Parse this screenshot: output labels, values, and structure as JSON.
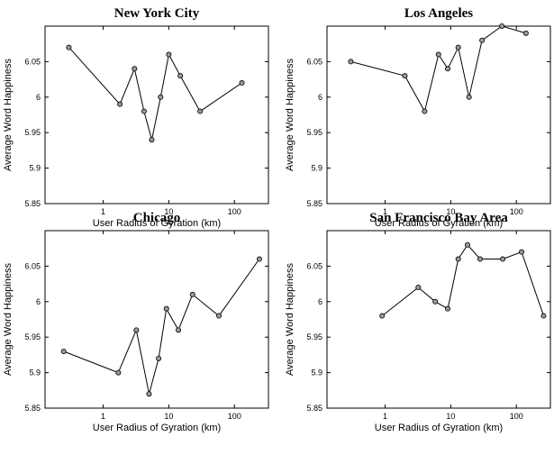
{
  "chart_data": [
    {
      "type": "line",
      "title": "New York City",
      "xlabel": "User Radius of Gyration (km)",
      "ylabel": "Average Word Happiness",
      "xscale": "log",
      "xlim": [
        0.13,
        330
      ],
      "ylim": [
        5.85,
        6.1
      ],
      "xticks": [
        {
          "v": 1,
          "label": "1"
        },
        {
          "v": 10,
          "label": "10"
        },
        {
          "v": 100,
          "label": "100"
        }
      ],
      "yticks": [
        {
          "v": 5.85,
          "label": "5.85"
        },
        {
          "v": 5.9,
          "label": "5.9"
        },
        {
          "v": 5.95,
          "label": "5.95"
        },
        {
          "v": 6,
          "label": "6"
        },
        {
          "v": 6.05,
          "label": "6.05"
        }
      ],
      "series": [
        {
          "x": [
            0.3,
            1.8,
            3.0,
            4.2,
            5.5,
            7.5,
            10,
            15,
            30,
            130
          ],
          "y": [
            6.07,
            5.99,
            6.04,
            5.98,
            5.94,
            6.0,
            6.06,
            6.03,
            5.98,
            6.02
          ]
        }
      ]
    },
    {
      "type": "line",
      "title": "Los Angeles",
      "xlabel": "User Radius of Gyration (km)",
      "ylabel": "Average Word Happiness",
      "xscale": "log",
      "xlim": [
        0.13,
        330
      ],
      "ylim": [
        5.85,
        6.1
      ],
      "xticks": [
        {
          "v": 1,
          "label": "1"
        },
        {
          "v": 10,
          "label": "10"
        },
        {
          "v": 100,
          "label": "100"
        }
      ],
      "yticks": [
        {
          "v": 5.85,
          "label": "5.85"
        },
        {
          "v": 5.9,
          "label": "5.9"
        },
        {
          "v": 5.95,
          "label": "5.95"
        },
        {
          "v": 6,
          "label": "6"
        },
        {
          "v": 6.05,
          "label": "6.05"
        }
      ],
      "series": [
        {
          "x": [
            0.3,
            2.0,
            4.0,
            6.5,
            9.0,
            13,
            19,
            30,
            60,
            140
          ],
          "y": [
            6.05,
            6.03,
            5.98,
            6.06,
            6.04,
            6.07,
            6.0,
            6.08,
            6.1,
            6.09
          ]
        }
      ]
    },
    {
      "type": "line",
      "title": "Chicago",
      "xlabel": "User Radius of Gyration (km)",
      "ylabel": "Average Word Happiness",
      "xscale": "log",
      "xlim": [
        0.13,
        330
      ],
      "ylim": [
        5.85,
        6.1
      ],
      "xticks": [
        {
          "v": 1,
          "label": "1"
        },
        {
          "v": 10,
          "label": "10"
        },
        {
          "v": 100,
          "label": "100"
        }
      ],
      "yticks": [
        {
          "v": 5.85,
          "label": "5.85"
        },
        {
          "v": 5.9,
          "label": "5.9"
        },
        {
          "v": 5.95,
          "label": "5.95"
        },
        {
          "v": 6,
          "label": "6"
        },
        {
          "v": 6.05,
          "label": "6.05"
        }
      ],
      "series": [
        {
          "x": [
            0.25,
            1.7,
            3.2,
            5.0,
            7.0,
            9.2,
            14,
            23,
            58,
            240
          ],
          "y": [
            5.93,
            5.9,
            5.96,
            5.87,
            5.92,
            5.99,
            5.96,
            6.01,
            5.98,
            6.06
          ]
        }
      ]
    },
    {
      "type": "line",
      "title": "San Francisco Bay Area",
      "xlabel": "User Radius of Gyration (km)",
      "ylabel": "Average Word Happiness",
      "xscale": "log",
      "xlim": [
        0.13,
        330
      ],
      "ylim": [
        5.85,
        6.1
      ],
      "xticks": [
        {
          "v": 1,
          "label": "1"
        },
        {
          "v": 10,
          "label": "10"
        },
        {
          "v": 100,
          "label": "100"
        }
      ],
      "yticks": [
        {
          "v": 5.85,
          "label": "5.85"
        },
        {
          "v": 5.9,
          "label": "5.9"
        },
        {
          "v": 5.95,
          "label": "5.95"
        },
        {
          "v": 6,
          "label": "6"
        },
        {
          "v": 6.05,
          "label": "6.05"
        }
      ],
      "series": [
        {
          "x": [
            0.9,
            3.2,
            5.8,
            9.0,
            13,
            18,
            28,
            62,
            120,
            260
          ],
          "y": [
            5.98,
            6.02,
            6.0,
            5.99,
            6.06,
            6.08,
            6.06,
            6.06,
            6.07,
            5.98
          ]
        }
      ]
    }
  ]
}
